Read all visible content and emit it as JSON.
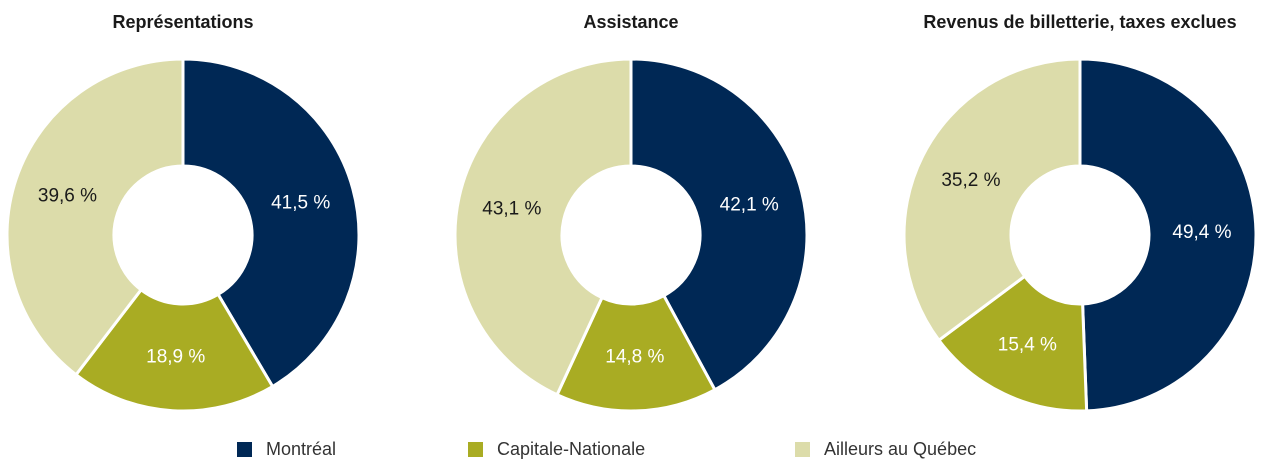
{
  "colors": {
    "montreal": "#002855",
    "capitale": "#a9ac23",
    "ailleurs": "#dcdcaa",
    "separator": "#ffffff"
  },
  "legend": [
    {
      "label": "Montréal",
      "color": "#002855"
    },
    {
      "label": "Capitale-Nationale",
      "color": "#a9ac23"
    },
    {
      "label": "Ailleurs au Québec",
      "color": "#dcdcaa"
    }
  ],
  "chart_data": [
    {
      "type": "pie",
      "title": "Représentations",
      "categories": [
        "Montréal",
        "Capitale-Nationale",
        "Ailleurs au Québec"
      ],
      "values": [
        41.5,
        18.9,
        39.6
      ],
      "labels": [
        "41,5 %",
        "18,9 %",
        "39,6 %"
      ],
      "donut": true
    },
    {
      "type": "pie",
      "title": "Assistance",
      "categories": [
        "Montréal",
        "Capitale-Nationale",
        "Ailleurs au Québec"
      ],
      "values": [
        42.1,
        14.8,
        43.1
      ],
      "labels": [
        "42,1 %",
        "14,8 %",
        "43,1 %"
      ],
      "donut": true
    },
    {
      "type": "pie",
      "title": "Revenus de billetterie, taxes exclues",
      "categories": [
        "Montréal",
        "Capitale-Nationale",
        "Ailleurs au Québec"
      ],
      "values": [
        49.4,
        15.4,
        35.2
      ],
      "labels": [
        "49,4 %",
        "15,4 %",
        "35,2 %"
      ],
      "donut": true
    }
  ]
}
